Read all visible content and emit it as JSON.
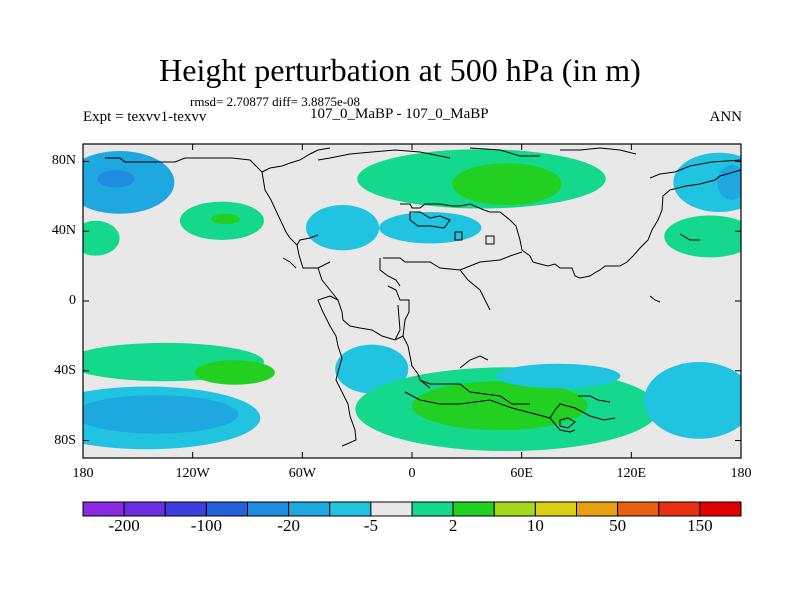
{
  "chart_data": {
    "type": "heatmap",
    "title": "Height perturbation at 500 hPa (in m)",
    "subtitle": "rmsd= 2.70877 diff= 3.8875e-08",
    "left_label": "Expt = texvv1-texvv",
    "center_label": "107_0_MaBP - 107_0_MaBP",
    "right_label": "ANN",
    "projection": "cylindrical equidistant",
    "lon_range": [
      -180,
      180
    ],
    "lat_range": [
      -90,
      90
    ],
    "lat_ticks": [
      {
        "value": 80,
        "label": "80N"
      },
      {
        "value": 40,
        "label": "40N"
      },
      {
        "value": 0,
        "label": "0"
      },
      {
        "value": -40,
        "label": "40S"
      },
      {
        "value": -80,
        "label": "80S"
      }
    ],
    "lon_ticks": [
      {
        "value": -180,
        "label": "180"
      },
      {
        "value": -120,
        "label": "120W"
      },
      {
        "value": -60,
        "label": "60W"
      },
      {
        "value": 0,
        "label": "0"
      },
      {
        "value": 60,
        "label": "60E"
      },
      {
        "value": 120,
        "label": "120E"
      },
      {
        "value": 180,
        "label": "180"
      }
    ],
    "colorbar": {
      "colors": [
        "#8a2be2",
        "#6a2fe0",
        "#3d3fdc",
        "#2561d9",
        "#1f8ce0",
        "#1fa8e0",
        "#20c4e0",
        "#e8e8e8",
        "#14d98c",
        "#21d020",
        "#a4d81a",
        "#d8d014",
        "#e8a010",
        "#e86010",
        "#e83010",
        "#e00000"
      ],
      "labels": [
        {
          "boundary": 1,
          "label": "-200"
        },
        {
          "boundary": 3,
          "label": "-100"
        },
        {
          "boundary": 5,
          "label": "-20"
        },
        {
          "boundary": 7,
          "label": "-5"
        },
        {
          "boundary": 9,
          "label": "2"
        },
        {
          "boundary": 11,
          "label": "10"
        },
        {
          "boundary": 13,
          "label": "50"
        },
        {
          "boundary": 15,
          "label": "150"
        }
      ]
    },
    "anomaly_regions": [
      {
        "lon": -160,
        "lat": 68,
        "rlon": 30,
        "rlat": 18,
        "level": 5
      },
      {
        "lon": -162,
        "lat": 70,
        "rlon": 10,
        "rlat": 5,
        "level": 4
      },
      {
        "lon": -173,
        "lat": 36,
        "rlon": 13,
        "rlat": 10,
        "level": 8
      },
      {
        "lon": -104,
        "lat": 46,
        "rlon": 23,
        "rlat": 11,
        "level": 8
      },
      {
        "lon": -102,
        "lat": 47,
        "rlon": 8,
        "rlat": 3,
        "level": 9
      },
      {
        "lon": -38,
        "lat": 42,
        "rlon": 20,
        "rlat": 13,
        "level": 6
      },
      {
        "lon": 10,
        "lat": 42,
        "rlon": 28,
        "rlat": 9,
        "level": 6
      },
      {
        "lon": 38,
        "lat": 70,
        "rlon": 68,
        "rlat": 17,
        "level": 8
      },
      {
        "lon": 52,
        "lat": 67,
        "rlon": 30,
        "rlat": 12,
        "level": 9
      },
      {
        "lon": 168,
        "lat": 68,
        "rlon": 25,
        "rlat": 17,
        "level": 6
      },
      {
        "lon": 175,
        "lat": 68,
        "rlon": 8,
        "rlat": 10,
        "level": 5
      },
      {
        "lon": 163,
        "lat": 37,
        "rlon": 25,
        "rlat": 12,
        "level": 8
      },
      {
        "lon": -135,
        "lat": -35,
        "rlon": 54,
        "rlat": 11,
        "level": 8
      },
      {
        "lon": -97,
        "lat": -41,
        "rlon": 22,
        "rlat": 7,
        "level": 9
      },
      {
        "lon": -145,
        "lat": -67,
        "rlon": 62,
        "rlat": 18,
        "level": 6
      },
      {
        "lon": -140,
        "lat": -65,
        "rlon": 45,
        "rlat": 11,
        "level": 5
      },
      {
        "lon": -22,
        "lat": -39,
        "rlon": 20,
        "rlat": 14,
        "level": 6
      },
      {
        "lon": 52,
        "lat": -62,
        "rlon": 83,
        "rlat": 24,
        "level": 8
      },
      {
        "lon": 48,
        "lat": -60,
        "rlon": 48,
        "rlat": 14,
        "level": 9
      },
      {
        "lon": 80,
        "lat": -43,
        "rlon": 34,
        "rlat": 7,
        "level": 6
      },
      {
        "lon": 157,
        "lat": -57,
        "rlon": 30,
        "rlat": 22,
        "level": 6
      }
    ]
  }
}
